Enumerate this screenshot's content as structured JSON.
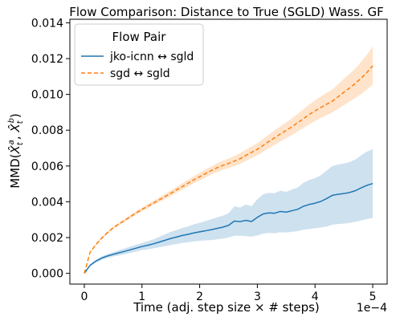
{
  "chart_data": {
    "type": "line",
    "title": "Flow Comparison: Distance to True (SGLD) Wass. GF",
    "xlabel": "Time (adj. step size × # steps)",
    "x_offset_text": "1e−4",
    "ylabel_prefix": "MMD(",
    "ylabel_xhat_a": "X̂",
    "ylabel_sub_a": "t",
    "ylabel_sup_a": "a",
    "ylabel_comma": ", ",
    "ylabel_xhat_b": "X̂",
    "ylabel_sub_b": "t",
    "ylabel_sup_b": "b",
    "ylabel_suffix": ")",
    "xlim": [
      -0.25,
      5.25
    ],
    "ylim": [
      -0.0006,
      0.0142
    ],
    "x_ticks": [
      0,
      1,
      2,
      3,
      4,
      5
    ],
    "x_tick_labels": [
      "0",
      "1",
      "2",
      "3",
      "4",
      "5"
    ],
    "y_ticks": [
      0.0,
      0.002,
      0.004,
      0.006,
      0.008,
      0.01,
      0.012,
      0.014
    ],
    "y_tick_labels": [
      "0.000",
      "0.002",
      "0.004",
      "0.006",
      "0.008",
      "0.010",
      "0.012",
      "0.014"
    ],
    "grid": false,
    "legend_title": "Flow Pair",
    "legend_position": "upper-left",
    "x": [
      0,
      0.1,
      0.2,
      0.3,
      0.4,
      0.5,
      0.6,
      0.7,
      0.8,
      0.9,
      1.0,
      1.1,
      1.2,
      1.3,
      1.4,
      1.5,
      1.6,
      1.7,
      1.8,
      1.9,
      2.0,
      2.1,
      2.2,
      2.3,
      2.4,
      2.5,
      2.6,
      2.7,
      2.8,
      2.9,
      3.0,
      3.1,
      3.2,
      3.3,
      3.4,
      3.5,
      3.6,
      3.7,
      3.8,
      3.9,
      4.0,
      4.1,
      4.2,
      4.3,
      4.4,
      4.5,
      4.6,
      4.7,
      4.8,
      4.9,
      5.0
    ],
    "series": [
      {
        "name": "jko-icnn ↔ sgld",
        "color": "#1f77b4",
        "style": "solid",
        "values": [
          0.0,
          0.00045,
          0.00068,
          0.00085,
          0.00097,
          0.00106,
          0.00115,
          0.00123,
          0.00132,
          0.00141,
          0.0015,
          0.00157,
          0.00165,
          0.00175,
          0.00185,
          0.00195,
          0.00203,
          0.00212,
          0.00218,
          0.00226,
          0.00232,
          0.00238,
          0.00244,
          0.00251,
          0.00258,
          0.00268,
          0.00292,
          0.00289,
          0.00296,
          0.0029,
          0.00313,
          0.00332,
          0.00338,
          0.00336,
          0.00346,
          0.00342,
          0.0035,
          0.00358,
          0.00375,
          0.00385,
          0.00392,
          0.00402,
          0.00418,
          0.00436,
          0.00442,
          0.00446,
          0.00452,
          0.00462,
          0.00478,
          0.00492,
          0.00502
        ],
        "lower": [
          0.0,
          0.0004,
          0.0006,
          0.00075,
          0.00086,
          0.00094,
          0.001,
          0.00107,
          0.00114,
          0.00122,
          0.0013,
          0.00134,
          0.0014,
          0.00146,
          0.00152,
          0.00158,
          0.00164,
          0.0017,
          0.00174,
          0.00178,
          0.00182,
          0.00184,
          0.00186,
          0.0019,
          0.00194,
          0.002,
          0.0021,
          0.0021,
          0.00208,
          0.00205,
          0.00212,
          0.00222,
          0.00226,
          0.00224,
          0.0023,
          0.00228,
          0.00232,
          0.00236,
          0.00244,
          0.00248,
          0.00252,
          0.00256,
          0.00262,
          0.00272,
          0.00276,
          0.00278,
          0.00282,
          0.00288,
          0.00296,
          0.00304,
          0.0031
        ],
        "upper": [
          0.0,
          0.0005,
          0.00076,
          0.00095,
          0.00108,
          0.00118,
          0.0013,
          0.00139,
          0.0015,
          0.0016,
          0.0017,
          0.0018,
          0.0019,
          0.00204,
          0.00218,
          0.00232,
          0.00242,
          0.00254,
          0.00262,
          0.00274,
          0.00282,
          0.00292,
          0.00302,
          0.00312,
          0.00322,
          0.00336,
          0.00374,
          0.00368,
          0.00384,
          0.00375,
          0.00414,
          0.00442,
          0.0045,
          0.00448,
          0.00462,
          0.00456,
          0.00468,
          0.0048,
          0.00506,
          0.00522,
          0.00532,
          0.00548,
          0.00574,
          0.006,
          0.00608,
          0.00614,
          0.00622,
          0.00636,
          0.0066,
          0.0068,
          0.00694
        ]
      },
      {
        "name": "sgd ↔ sgld",
        "color": "#ff7f0e",
        "style": "dashed",
        "values": [
          0.0,
          0.00118,
          0.0016,
          0.00196,
          0.00227,
          0.00254,
          0.00276,
          0.00296,
          0.00317,
          0.00338,
          0.00357,
          0.00375,
          0.00393,
          0.00411,
          0.00429,
          0.00447,
          0.00467,
          0.00485,
          0.00504,
          0.00523,
          0.0054,
          0.00557,
          0.00574,
          0.0059,
          0.00603,
          0.00614,
          0.00627,
          0.00641,
          0.00659,
          0.00676,
          0.00693,
          0.00715,
          0.00737,
          0.00758,
          0.00779,
          0.00799,
          0.00819,
          0.00842,
          0.00864,
          0.00888,
          0.00908,
          0.00927,
          0.00945,
          0.00962,
          0.00987,
          0.01012,
          0.01036,
          0.01062,
          0.01091,
          0.01123,
          0.0116
        ],
        "lower": [
          0.0,
          0.00113,
          0.00153,
          0.00189,
          0.0022,
          0.00247,
          0.00268,
          0.00287,
          0.00308,
          0.00328,
          0.00347,
          0.00364,
          0.00381,
          0.00398,
          0.00415,
          0.00432,
          0.00451,
          0.00468,
          0.00486,
          0.00504,
          0.0052,
          0.00536,
          0.00552,
          0.00566,
          0.00578,
          0.00588,
          0.00599,
          0.00612,
          0.00628,
          0.00644,
          0.0066,
          0.00679,
          0.00699,
          0.00718,
          0.00737,
          0.00755,
          0.00773,
          0.00793,
          0.00813,
          0.00833,
          0.00851,
          0.00868,
          0.00884,
          0.00899,
          0.00919,
          0.0094,
          0.0096,
          0.00981,
          0.01003,
          0.01028,
          0.01055
        ],
        "upper": [
          0.0,
          0.00123,
          0.00167,
          0.00204,
          0.00235,
          0.00262,
          0.00284,
          0.00305,
          0.00327,
          0.00348,
          0.00368,
          0.00387,
          0.00406,
          0.00425,
          0.00444,
          0.00463,
          0.00484,
          0.00503,
          0.00523,
          0.00543,
          0.00561,
          0.00579,
          0.00597,
          0.00615,
          0.00629,
          0.00641,
          0.00656,
          0.00671,
          0.00691,
          0.00709,
          0.00727,
          0.00752,
          0.00776,
          0.00799,
          0.00822,
          0.00844,
          0.00866,
          0.00892,
          0.00917,
          0.00944,
          0.00967,
          0.00988,
          0.01008,
          0.01028,
          0.01057,
          0.01087,
          0.01115,
          0.01145,
          0.01182,
          0.01222,
          0.01268
        ]
      }
    ]
  }
}
